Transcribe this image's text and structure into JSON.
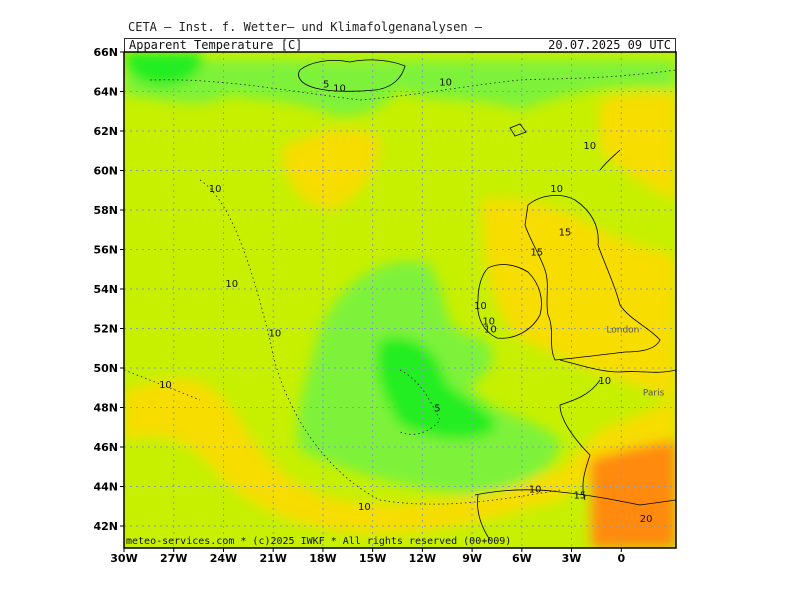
{
  "header": {
    "title": "CETA — Inst. f. Wetter— und Klimafolgenanalysen —",
    "parameter": "Apparent_Temperature [C]",
    "valid_time": "20.07.2025 09 UTC"
  },
  "credit": "meteo-services.com * (c)2025 IWKF * All rights reserved (00+009)",
  "axes": {
    "lat_labels": [
      "66N",
      "64N",
      "62N",
      "60N",
      "58N",
      "56N",
      "54N",
      "52N",
      "50N",
      "48N",
      "46N",
      "44N",
      "42N"
    ],
    "lon_labels": [
      "30W",
      "27W",
      "24W",
      "21W",
      "18W",
      "15W",
      "12W",
      "9W",
      "6W",
      "3W",
      "0"
    ]
  },
  "contour_labels": [
    {
      "text": "10",
      "lon": -10.6,
      "lat": 64.3
    },
    {
      "text": "5",
      "lon": -17.8,
      "lat": 64.2
    },
    {
      "text": "10",
      "lon": -17.0,
      "lat": 64.0
    },
    {
      "text": "10",
      "lon": -24.5,
      "lat": 58.9
    },
    {
      "text": "10",
      "lon": -1.9,
      "lat": 61.1
    },
    {
      "text": "10",
      "lon": -3.9,
      "lat": 58.9
    },
    {
      "text": "15",
      "lon": -3.4,
      "lat": 56.7
    },
    {
      "text": "15",
      "lon": -5.1,
      "lat": 55.7
    },
    {
      "text": "10",
      "lon": -23.5,
      "lat": 54.1
    },
    {
      "text": "10",
      "lon": -8.5,
      "lat": 53.0
    },
    {
      "text": "10",
      "lon": -8.0,
      "lat": 52.2
    },
    {
      "text": "10",
      "lon": -7.9,
      "lat": 51.8
    },
    {
      "text": "10",
      "lon": -20.9,
      "lat": 51.6
    },
    {
      "text": "10",
      "lon": -1.0,
      "lat": 49.2
    },
    {
      "text": "10",
      "lon": -27.5,
      "lat": 49.0
    },
    {
      "text": "5",
      "lon": -11.1,
      "lat": 47.8
    },
    {
      "text": "10",
      "lon": -5.2,
      "lat": 43.7
    },
    {
      "text": "15",
      "lon": -2.5,
      "lat": 43.4
    },
    {
      "text": "10",
      "lon": -15.5,
      "lat": 42.8
    },
    {
      "text": "20",
      "lon": 1.5,
      "lat": 42.2
    }
  ],
  "cities": [
    {
      "text": "London",
      "lon": -0.9,
      "lat": 51.8
    },
    {
      "text": "Paris",
      "lon": 1.3,
      "lat": 48.6
    }
  ],
  "colors": {
    "cool": "#22ee22",
    "mild": "#7ef23a",
    "neutral": "#c6f000",
    "warm": "#f7dd00",
    "hot": "#ffb400",
    "hotter": "#ff8a10",
    "grid": "#8899cc",
    "coast": "#000000"
  }
}
